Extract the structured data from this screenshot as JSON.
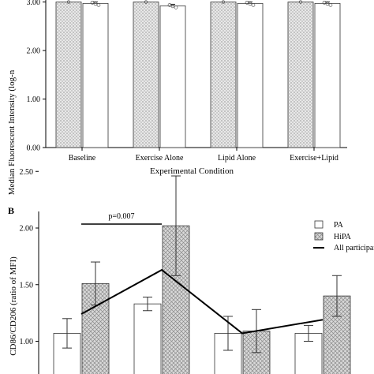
{
  "chart_data": [
    {
      "type": "bar",
      "panel": "",
      "ylabel": "Median Fluorescent Intensity (log-n",
      "xlabel": "Experimental Condition",
      "categories": [
        "Baseline",
        "Exercise Alone",
        "Lipid Alone",
        "Exercise+Lipid"
      ],
      "yticks": [
        "0.00",
        "1.00",
        "2.00",
        "3.00"
      ],
      "ylim": [
        0,
        3.05
      ],
      "series": [
        {
          "values": [
            3.0,
            3.0,
            3.0,
            3.0
          ],
          "pattern": "dots"
        },
        {
          "values": [
            2.97,
            2.92,
            2.97,
            2.97
          ],
          "pattern": "plain"
        }
      ]
    },
    {
      "type": "bar",
      "panel": "B",
      "ylabel": "CD86/CD206 (ratio of MFI)",
      "yticks": [
        "1.00",
        "1.50",
        "2.00",
        "2.50"
      ],
      "ylim": [
        0.72,
        2.72
      ],
      "annotation": "p=0.007",
      "legend": {
        "position": "top-right",
        "entries": [
          "PA",
          "HiPA",
          "All participants"
        ]
      },
      "groups": 4,
      "series": [
        {
          "name": "PA",
          "values": [
            1.07,
            1.33,
            1.07,
            1.07
          ],
          "err": [
            0.13,
            0.06,
            0.15,
            0.07
          ],
          "pattern": "plain"
        },
        {
          "name": "HiPA",
          "values": [
            1.51,
            2.02,
            1.09,
            1.4
          ],
          "err": [
            0.19,
            0.44,
            0.19,
            0.18
          ],
          "pattern": "cross"
        },
        {
          "name": "All participants",
          "values": [
            1.24,
            1.63,
            1.07,
            1.19
          ],
          "type": "line"
        }
      ]
    }
  ]
}
